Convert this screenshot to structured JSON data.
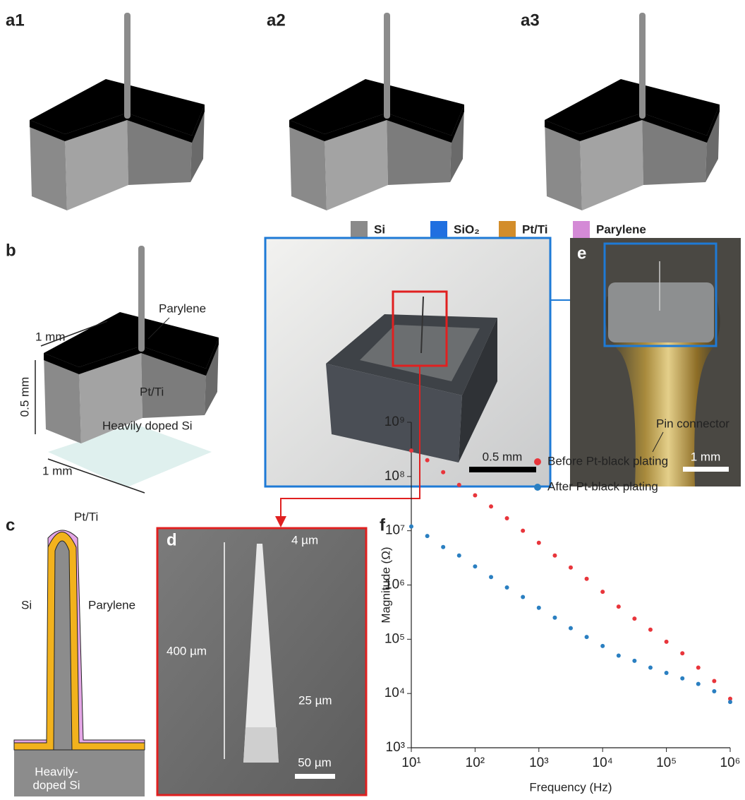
{
  "labels": {
    "a1": "a1",
    "a2": "a2",
    "a3": "a3",
    "b": "b",
    "c": "c",
    "d": "d",
    "e": "e",
    "f": "f"
  },
  "materials": [
    "Si",
    "SiO₂",
    "Pt/Ti",
    "Parylene"
  ],
  "panel_b": {
    "top_width": "1 mm",
    "parylene": "Parylene",
    "height": "0.5 mm",
    "pt_ti": "Pt/Ti",
    "substrate": "Heavily doped Si",
    "bottom_width": "1 mm"
  },
  "photo": {
    "scale_bar": "0.5 mm"
  },
  "panel_e": {
    "pin": "Pin connector",
    "scale_bar": "1 mm"
  },
  "panel_c": {
    "pt_ti": "Pt/Ti",
    "si": "Si",
    "parylene": "Parylene",
    "substrate": [
      "Heavily-",
      "doped Si"
    ]
  },
  "panel_d": {
    "tip": "4 µm",
    "length": "400 µm",
    "base": "25 µm",
    "scale_bar": "50 µm"
  },
  "chart_data": {
    "type": "scatter",
    "x_label": "Frequency (Hz)",
    "y_label": "Magnitude (Ω)",
    "log_x": true,
    "log_y": true,
    "x": [
      10,
      17.8,
      31.6,
      56.2,
      100,
      178,
      316,
      562,
      1000,
      1780,
      3160,
      5620,
      10000,
      17800,
      31600,
      56200,
      100000,
      178000,
      316000,
      562000,
      1000000
    ],
    "series": [
      {
        "name": "Before Pt-black plating",
        "color": "#e8353b",
        "values": [
          300000000,
          200000000,
          120000000,
          70000000,
          45000000,
          28000000,
          17000000,
          10000000,
          6000000,
          3500000,
          2100000,
          1300000,
          750000,
          400000,
          240000,
          150000,
          90000,
          55000,
          30000,
          17000,
          8000
        ]
      },
      {
        "name": "After Pt-black plating",
        "color": "#2a7fc1",
        "values": [
          12000000,
          8000000,
          5000000,
          3500000,
          2200000,
          1400000,
          900000,
          600000,
          380000,
          250000,
          160000,
          110000,
          75000,
          50000,
          40000,
          30000,
          24000,
          19000,
          15000,
          11000,
          7000
        ]
      }
    ],
    "xlim": [
      10,
      1000000
    ],
    "xticks": [
      {
        "value": 10,
        "label": "10¹"
      },
      {
        "value": 100,
        "label": "10²"
      },
      {
        "value": 1000,
        "label": "10³"
      },
      {
        "value": 10000,
        "label": "10⁴"
      },
      {
        "value": 100000,
        "label": "10⁵"
      },
      {
        "value": 1000000,
        "label": "10⁶"
      }
    ],
    "ylim": [
      1000,
      1000000000
    ],
    "yticks": [
      {
        "value": 1000,
        "label": "10³"
      },
      {
        "value": 10000,
        "label": "10⁴"
      },
      {
        "value": 100000,
        "label": "10⁵"
      },
      {
        "value": 1000000,
        "label": "10⁶"
      },
      {
        "value": 10000000,
        "label": "10⁷"
      },
      {
        "value": 100000000,
        "label": "10⁸"
      },
      {
        "value": 1000000000,
        "label": "10⁹"
      }
    ],
    "legend": "upper right",
    "grid": false
  }
}
